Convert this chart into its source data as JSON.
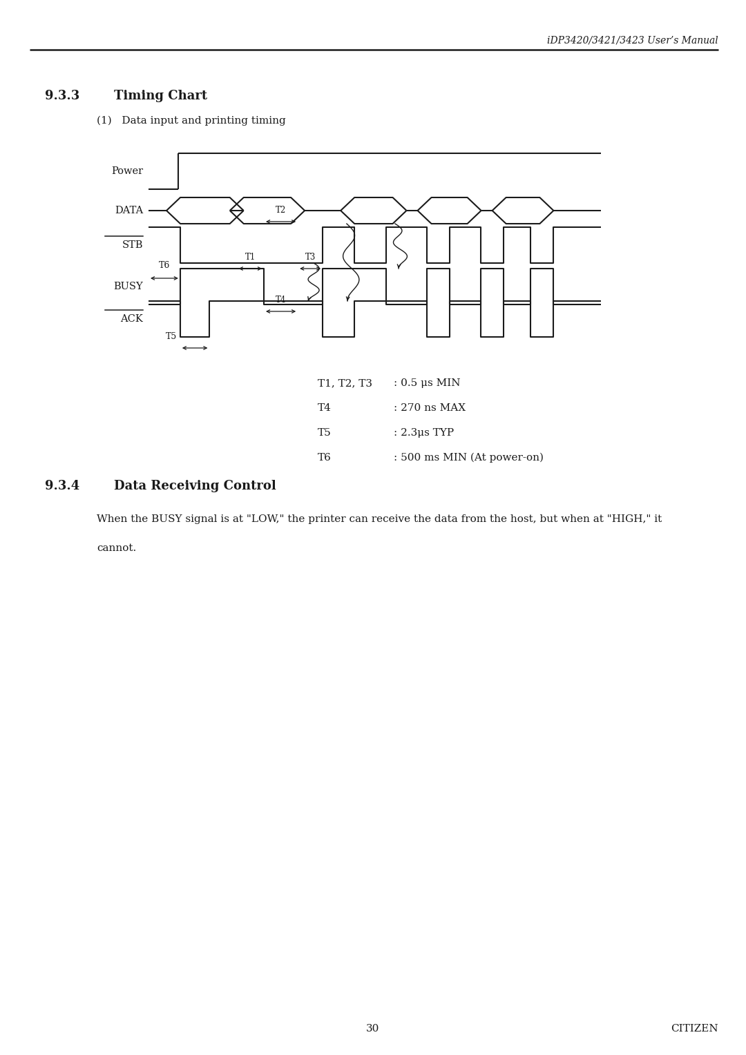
{
  "header_text": "iDP3420/3421/3423 User’s Manual",
  "section_933_num": "9.3.3",
  "section_933_title": "Timing Chart",
  "subsection": "(1)   Data input and printing timing",
  "timing_specs": [
    {
      "param": "T1, T2, T3",
      "desc": ": 0.5 μs MIN"
    },
    {
      "param": "T4",
      "desc": ": 270 ns MAX"
    },
    {
      "param": "T5",
      "desc": ": 2.3μs TYP"
    },
    {
      "param": "T6",
      "desc": ": 500 ms MIN (At power-on)"
    }
  ],
  "section_934_num": "9.3.4",
  "section_934_title": "Data Receiving Control",
  "section_934_body1": "When the BUSY signal is at \"LOW,\" the printer can receive the data from the host, but when at \"HIGH,\" it",
  "section_934_body2": "cannot.",
  "footer_page": "30",
  "footer_brand": "CITIZEN",
  "bg_color": "#ffffff",
  "line_color": "#1a1a1a",
  "text_color": "#1a1a1a"
}
